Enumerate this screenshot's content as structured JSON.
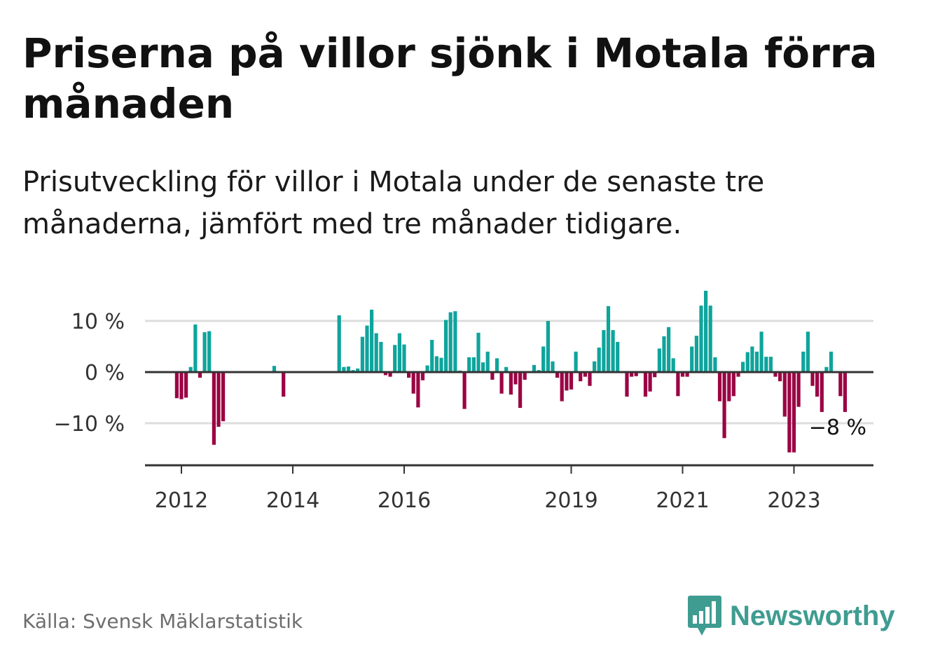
{
  "header": {
    "title": "Priserna på villor sjönk i Motala förra månaden",
    "subtitle": "Prisutveckling för villor i Motala under de senaste tre månaderna, jämfört med tre månader tidigare."
  },
  "footer": {
    "source": "Källa: Svensk Mäklarstatistik",
    "brand": "Newsworthy"
  },
  "colors": {
    "positive": "#0fa49c",
    "negative": "#9b0444",
    "grid": "#dddddd",
    "axis": "#333333"
  },
  "chart_data": {
    "type": "bar",
    "title": "",
    "xlabel": "",
    "ylabel": "",
    "ylim": [
      -18,
      16
    ],
    "y_ticks": [
      {
        "value": 10,
        "label": "10 %"
      },
      {
        "value": 0,
        "label": "0 %"
      },
      {
        "value": -10,
        "label": "−10 %"
      }
    ],
    "x_ticks": [
      {
        "month": "2012-01",
        "label": "2012"
      },
      {
        "month": "2014-01",
        "label": "2014"
      },
      {
        "month": "2016-01",
        "label": "2016"
      },
      {
        "month": "2019-01",
        "label": "2019"
      },
      {
        "month": "2021-01",
        "label": "2021"
      },
      {
        "month": "2023-01",
        "label": "2023"
      }
    ],
    "x_range": [
      "2011-06",
      "2024-09"
    ],
    "last_value_label": "−8 %",
    "series": [
      {
        "start_month": "2011-12",
        "values": [
          -5.1,
          -5.3,
          -5.0,
          1.0,
          9.3,
          -1.1,
          7.8,
          8.0,
          -14.2,
          -10.7,
          -9.6,
          null,
          null,
          null,
          null,
          null,
          null,
          null,
          null,
          null,
          null,
          null,
          null,
          null,
          null,
          null,
          null,
          null,
          null,
          null,
          null,
          null,
          null,
          null,
          null,
          null,
          null,
          null,
          null,
          null,
          null,
          null,
          null,
          null,
          null,
          null,
          null,
          null,
          null,
          null,
          null,
          null,
          null,
          null,
          null,
          null,
          null,
          null,
          null,
          null,
          null,
          null,
          null,
          null,
          null,
          null,
          null,
          null,
          null,
          null,
          null,
          null,
          null,
          null,
          null,
          null,
          null,
          null,
          null,
          null,
          null,
          null,
          null,
          null,
          null,
          null,
          null,
          null,
          null,
          null,
          null,
          null,
          null,
          null,
          null,
          null,
          null,
          null,
          null,
          null,
          null,
          null,
          null,
          null,
          null,
          null,
          null,
          null,
          null,
          null,
          null,
          null,
          null,
          null,
          null,
          null,
          null,
          null,
          null,
          null,
          null,
          null,
          null,
          null,
          null,
          null,
          null,
          null,
          null,
          null,
          null,
          null,
          null,
          null,
          null,
          null,
          null,
          null,
          null,
          null,
          null,
          null,
          null,
          null,
          null,
          null,
          null,
          null,
          null,
          null,
          null,
          null,
          null,
          null,
          null,
          null,
          null,
          null,
          null,
          null,
          null,
          null,
          null,
          null,
          null,
          null
        ]
      },
      {
        "start_month": "2013-09",
        "values": [
          1.2,
          null,
          -4.8,
          null,
          null,
          null,
          null,
          null,
          null,
          null,
          null,
          null,
          null,
          null,
          11.1,
          1.0,
          1.1,
          0.4,
          0.7,
          6.9,
          9.1,
          12.2,
          7.6,
          5.9,
          -0.6,
          -0.9,
          5.3,
          7.6,
          5.4,
          -1.1,
          -4.2,
          -6.9,
          -1.6,
          1.3,
          6.3,
          3.1,
          2.8,
          10.2,
          11.7,
          11.9,
          0.3,
          -7.2,
          2.9,
          2.9,
          7.7,
          1.9,
          4.0,
          -1.5,
          2.7,
          -4.2,
          1.0,
          -4.4,
          -2.4,
          -7.0,
          -1.5,
          null,
          1.4,
          0.4,
          5.0,
          10.0,
          2.1,
          -1.1,
          -5.7,
          -3.6,
          -3.4,
          4.0,
          -1.8,
          -0.9,
          -2.7,
          2.1,
          4.8,
          8.2,
          12.9,
          8.2,
          5.9,
          null,
          -4.8,
          -0.9,
          -0.8,
          null,
          -4.8,
          -3.8,
          -1.0,
          4.6,
          7.0,
          8.8,
          2.7,
          -4.7,
          -0.9,
          -0.9,
          5.0,
          7.1,
          13.0,
          15.9,
          13.0,
          2.9,
          -5.7,
          -12.9,
          -5.7,
          -4.7,
          -0.9,
          2.0,
          3.9,
          5.0,
          4.0,
          7.9,
          3.0,
          3.0,
          -0.9,
          -1.8,
          -8.7,
          -15.7,
          -15.7,
          -6.8,
          4.0,
          7.9,
          -2.7,
          -4.8,
          -7.8,
          1.0,
          4.0,
          null,
          -4.7,
          -7.8
        ]
      }
    ]
  }
}
